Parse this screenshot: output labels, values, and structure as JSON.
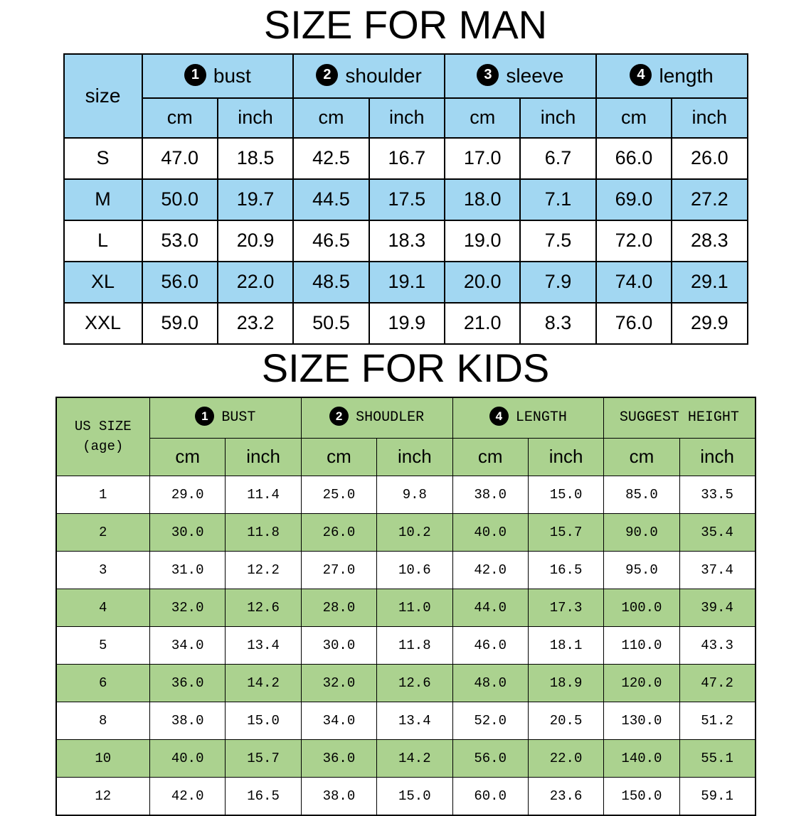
{
  "colors": {
    "man_accent": "#a2d7f2",
    "kids_accent": "#abd28f",
    "border": "#000000",
    "circle_badge": "#000000",
    "circle_text": "#ffffff"
  },
  "chart_data": [
    {
      "type": "table",
      "title": "SIZE FOR MAN",
      "corner_label": "size",
      "groups": [
        {
          "num": "1",
          "label": "bust"
        },
        {
          "num": "2",
          "label": "shoulder"
        },
        {
          "num": "3",
          "label": "sleeve"
        },
        {
          "num": "4",
          "label": "length"
        }
      ],
      "units": [
        "cm",
        "inch"
      ],
      "rows": [
        {
          "size": "S",
          "values": [
            "47.0",
            "18.5",
            "42.5",
            "16.7",
            "17.0",
            "6.7",
            "66.0",
            "26.0"
          ]
        },
        {
          "size": "M",
          "values": [
            "50.0",
            "19.7",
            "44.5",
            "17.5",
            "18.0",
            "7.1",
            "69.0",
            "27.2"
          ]
        },
        {
          "size": "L",
          "values": [
            "53.0",
            "20.9",
            "46.5",
            "18.3",
            "19.0",
            "7.5",
            "72.0",
            "28.3"
          ]
        },
        {
          "size": "XL",
          "values": [
            "56.0",
            "22.0",
            "48.5",
            "19.1",
            "20.0",
            "7.9",
            "74.0",
            "29.1"
          ]
        },
        {
          "size": "XXL",
          "values": [
            "59.0",
            "23.2",
            "50.5",
            "19.9",
            "21.0",
            "8.3",
            "76.0",
            "29.9"
          ]
        }
      ]
    },
    {
      "type": "table",
      "title": "SIZE FOR KIDS",
      "corner_label_line1": "US SIZE",
      "corner_label_line2": "(age)",
      "groups": [
        {
          "num": "1",
          "label": "BUST"
        },
        {
          "num": "2",
          "label": "SHOUDLER"
        },
        {
          "num": "4",
          "label": "LENGTH"
        },
        {
          "num": "",
          "label": "SUGGEST HEIGHT"
        }
      ],
      "units": [
        "cm",
        "inch"
      ],
      "rows": [
        {
          "size": "1",
          "values": [
            "29.0",
            "11.4",
            "25.0",
            "9.8",
            "38.0",
            "15.0",
            "85.0",
            "33.5"
          ]
        },
        {
          "size": "2",
          "values": [
            "30.0",
            "11.8",
            "26.0",
            "10.2",
            "40.0",
            "15.7",
            "90.0",
            "35.4"
          ]
        },
        {
          "size": "3",
          "values": [
            "31.0",
            "12.2",
            "27.0",
            "10.6",
            "42.0",
            "16.5",
            "95.0",
            "37.4"
          ]
        },
        {
          "size": "4",
          "values": [
            "32.0",
            "12.6",
            "28.0",
            "11.0",
            "44.0",
            "17.3",
            "100.0",
            "39.4"
          ]
        },
        {
          "size": "5",
          "values": [
            "34.0",
            "13.4",
            "30.0",
            "11.8",
            "46.0",
            "18.1",
            "110.0",
            "43.3"
          ]
        },
        {
          "size": "6",
          "values": [
            "36.0",
            "14.2",
            "32.0",
            "12.6",
            "48.0",
            "18.9",
            "120.0",
            "47.2"
          ]
        },
        {
          "size": "8",
          "values": [
            "38.0",
            "15.0",
            "34.0",
            "13.4",
            "52.0",
            "20.5",
            "130.0",
            "51.2"
          ]
        },
        {
          "size": "10",
          "values": [
            "40.0",
            "15.7",
            "36.0",
            "14.2",
            "56.0",
            "22.0",
            "140.0",
            "55.1"
          ]
        },
        {
          "size": "12",
          "values": [
            "42.0",
            "16.5",
            "38.0",
            "15.0",
            "60.0",
            "23.6",
            "150.0",
            "59.1"
          ]
        }
      ]
    }
  ]
}
